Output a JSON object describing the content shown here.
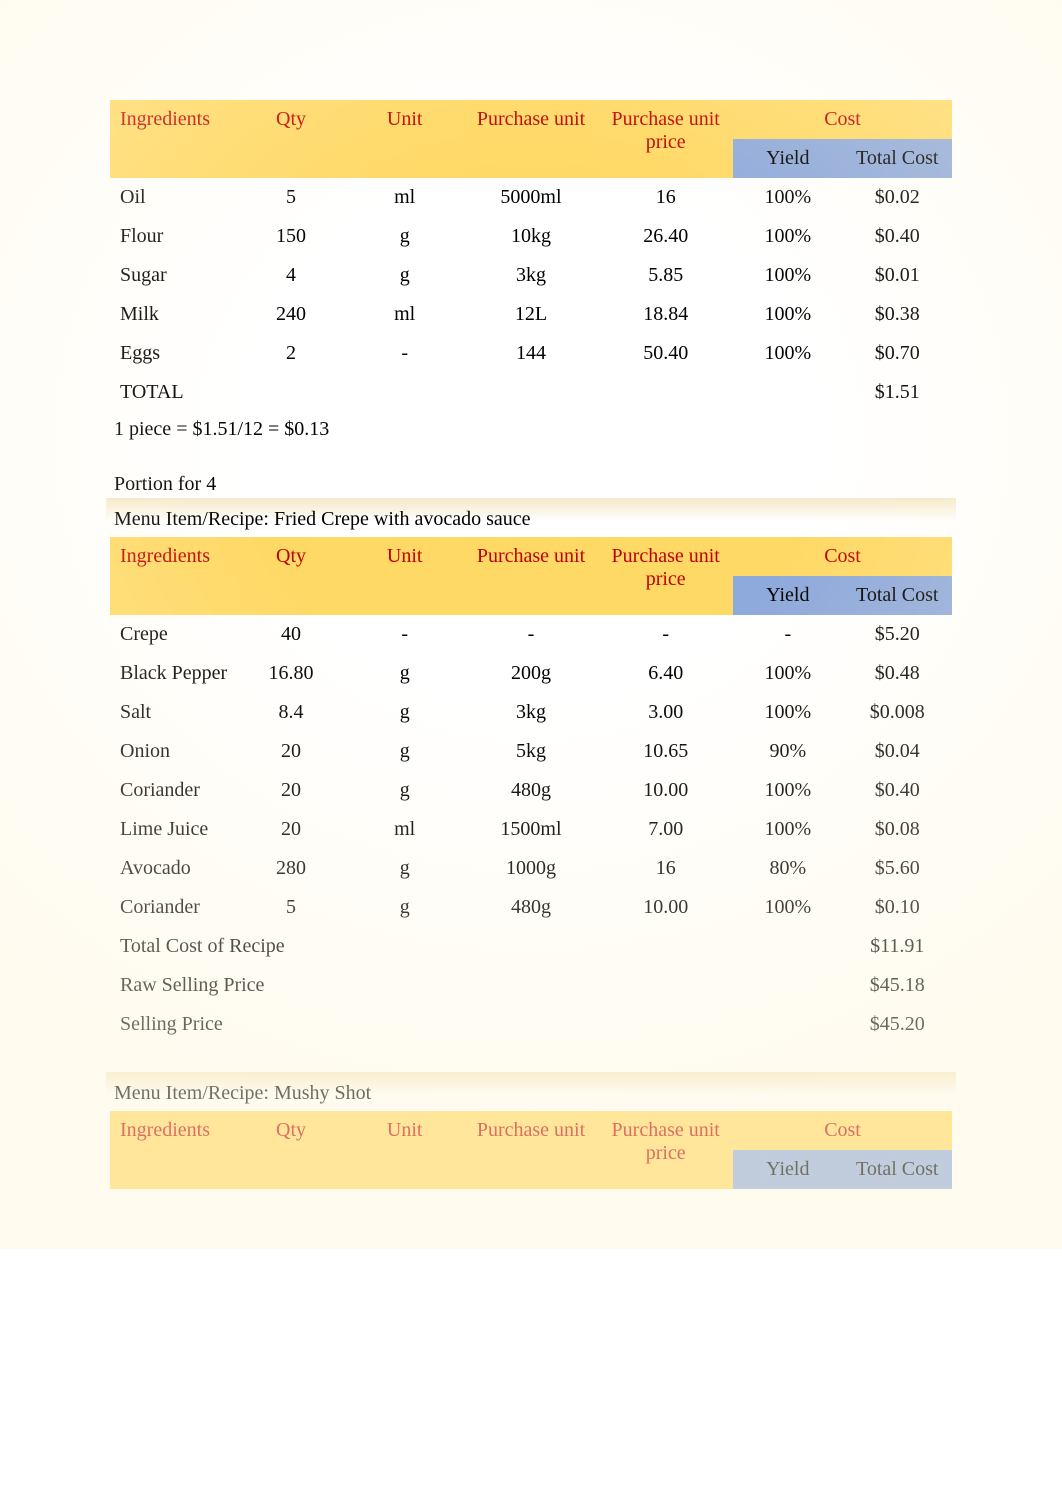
{
  "column_headers": {
    "ingredients": "Ingredients",
    "qty": "Qty",
    "unit": "Unit",
    "purchase_unit": "Purchase unit",
    "purchase_unit_price": "Purchase unit price",
    "cost": "Cost",
    "yield": "Yield",
    "total_cost": "Total Cost"
  },
  "colors": {
    "header_bg": "#ffd966",
    "header_text": "#c00000",
    "subheader_bg": "#8ea9db",
    "subheader_text": "#000000",
    "body_text": "#000000",
    "page_bg": "#ffffff"
  },
  "typography": {
    "font_family": "Times New Roman",
    "body_fontsize_pt": 15,
    "header_fontsize_pt": 15
  },
  "table1": {
    "rows": [
      {
        "ingredient": "Oil",
        "qty": "5",
        "unit": "ml",
        "purchase_unit": "5000ml",
        "purchase_unit_price": "16",
        "yield": "100%",
        "total_cost": "$0.02"
      },
      {
        "ingredient": "Flour",
        "qty": "150",
        "unit": "g",
        "purchase_unit": "10kg",
        "purchase_unit_price": "26.40",
        "yield": "100%",
        "total_cost": "$0.40"
      },
      {
        "ingredient": "Sugar",
        "qty": "4",
        "unit": "g",
        "purchase_unit": "3kg",
        "purchase_unit_price": "5.85",
        "yield": "100%",
        "total_cost": "$0.01"
      },
      {
        "ingredient": "Milk",
        "qty": "240",
        "unit": "ml",
        "purchase_unit": "12L",
        "purchase_unit_price": "18.84",
        "yield": "100%",
        "total_cost": "$0.38"
      },
      {
        "ingredient": "Eggs",
        "qty": "2",
        "unit": "-",
        "purchase_unit": "144",
        "purchase_unit_price": "50.40",
        "yield": "100%",
        "total_cost": "$0.70"
      }
    ],
    "total_label": "TOTAL",
    "total_value": "$1.51",
    "note": "1 piece = $1.51/12 = $0.13"
  },
  "portion_label": "Portion for 4",
  "table2": {
    "title": "Menu Item/Recipe: Fried Crepe with avocado sauce",
    "rows": [
      {
        "ingredient": "Crepe",
        "qty": "40",
        "unit": "-",
        "purchase_unit": "-",
        "purchase_unit_price": "-",
        "yield": "-",
        "total_cost": "$5.20"
      },
      {
        "ingredient": "Black Pepper",
        "qty": "16.80",
        "unit": "g",
        "purchase_unit": "200g",
        "purchase_unit_price": "6.40",
        "yield": "100%",
        "total_cost": "$0.48"
      },
      {
        "ingredient": "Salt",
        "qty": "8.4",
        "unit": "g",
        "purchase_unit": "3kg",
        "purchase_unit_price": "3.00",
        "yield": "100%",
        "total_cost": "$0.008"
      },
      {
        "ingredient": "Onion",
        "qty": "20",
        "unit": "g",
        "purchase_unit": "5kg",
        "purchase_unit_price": "10.65",
        "yield": "90%",
        "total_cost": "$0.04"
      },
      {
        "ingredient": "Coriander",
        "qty": "20",
        "unit": "g",
        "purchase_unit": "480g",
        "purchase_unit_price": "10.00",
        "yield": "100%",
        "total_cost": "$0.40"
      },
      {
        "ingredient": "Lime Juice",
        "qty": "20",
        "unit": "ml",
        "purchase_unit": "1500ml",
        "purchase_unit_price": "7.00",
        "yield": "100%",
        "total_cost": "$0.08"
      },
      {
        "ingredient": "Avocado",
        "qty": "280",
        "unit": "g",
        "purchase_unit": "1000g",
        "purchase_unit_price": "16",
        "yield": "80%",
        "total_cost": "$5.60"
      },
      {
        "ingredient": "Coriander",
        "qty": "5",
        "unit": "g",
        "purchase_unit": "480g",
        "purchase_unit_price": "10.00",
        "yield": "100%",
        "total_cost": "$0.10"
      }
    ],
    "summary": [
      {
        "label": "Total Cost of Recipe",
        "value": "$11.91"
      },
      {
        "label": "Raw Selling Price",
        "value": "$45.18"
      },
      {
        "label": "Selling Price",
        "value": "$45.20"
      }
    ]
  },
  "table3": {
    "title": "Menu Item/Recipe: Mushy Shot"
  }
}
